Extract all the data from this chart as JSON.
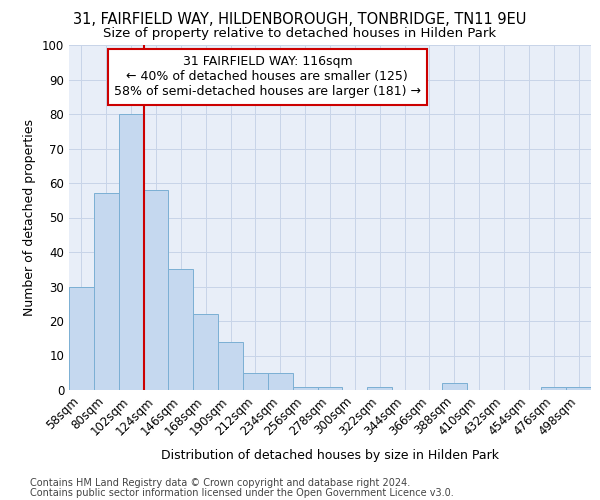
{
  "title1": "31, FAIRFIELD WAY, HILDENBOROUGH, TONBRIDGE, TN11 9EU",
  "title2": "Size of property relative to detached houses in Hilden Park",
  "xlabel": "Distribution of detached houses by size in Hilden Park",
  "ylabel": "Number of detached properties",
  "footnote1": "Contains HM Land Registry data © Crown copyright and database right 2024.",
  "footnote2": "Contains public sector information licensed under the Open Government Licence v3.0.",
  "annotation_line1": "31 FAIRFIELD WAY: 116sqm",
  "annotation_line2": "← 40% of detached houses are smaller (125)",
  "annotation_line3": "58% of semi-detached houses are larger (181) →",
  "bar_categories": [
    "58sqm",
    "80sqm",
    "102sqm",
    "124sqm",
    "146sqm",
    "168sqm",
    "190sqm",
    "212sqm",
    "234sqm",
    "256sqm",
    "278sqm",
    "300sqm",
    "322sqm",
    "344sqm",
    "366sqm",
    "388sqm",
    "410sqm",
    "432sqm",
    "454sqm",
    "476sqm",
    "498sqm"
  ],
  "bar_values": [
    30,
    57,
    80,
    58,
    35,
    22,
    14,
    5,
    5,
    1,
    1,
    0,
    1,
    0,
    0,
    2,
    0,
    0,
    0,
    1,
    1
  ],
  "bar_color": "#c5d8ef",
  "bar_edge_color": "#7bafd4",
  "grid_color": "#c8d4e8",
  "background_color": "#e8eef8",
  "ylim": [
    0,
    100
  ],
  "yticks": [
    0,
    10,
    20,
    30,
    40,
    50,
    60,
    70,
    80,
    90,
    100
  ],
  "annotation_box_color": "#cc0000",
  "vline_color": "#cc0000",
  "vline_x_index": 3,
  "title1_fontsize": 10.5,
  "title2_fontsize": 9.5,
  "xlabel_fontsize": 9,
  "ylabel_fontsize": 9,
  "footnote_fontsize": 7,
  "tick_fontsize": 8.5,
  "annotation_fontsize": 9
}
